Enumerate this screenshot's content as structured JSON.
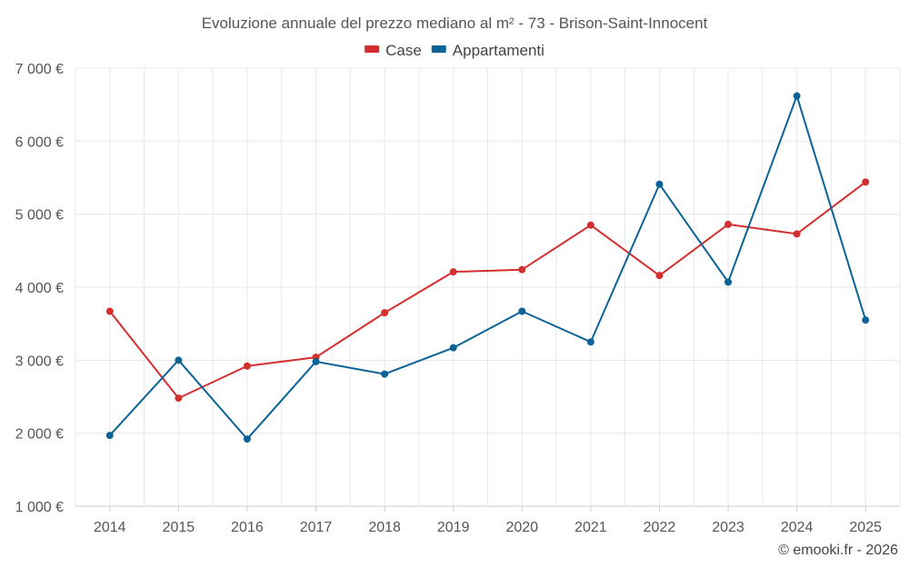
{
  "chart_data": {
    "type": "line",
    "title": "Evoluzione annuale del prezzo mediano al m² - 73 - Brison-Saint-Innocent",
    "categories": [
      "2014",
      "2015",
      "2016",
      "2017",
      "2018",
      "2019",
      "2020",
      "2021",
      "2022",
      "2023",
      "2024",
      "2025"
    ],
    "series": [
      {
        "name": "Case",
        "color": "#d32f2f",
        "values": [
          3670,
          2480,
          2920,
          3040,
          3650,
          4210,
          4240,
          4850,
          4160,
          4860,
          4730,
          5440
        ]
      },
      {
        "name": "Appartamenti",
        "color": "#0b6396",
        "values": [
          1970,
          3000,
          1920,
          2980,
          2810,
          3170,
          3670,
          3250,
          5410,
          4070,
          6620,
          3550
        ]
      }
    ],
    "ylim": [
      1000,
      7000
    ],
    "yticks": [
      1000,
      2000,
      3000,
      4000,
      5000,
      6000,
      7000
    ],
    "ytick_labels": [
      "1 000 €",
      "2 000 €",
      "3 000 €",
      "4 000 €",
      "5 000 €",
      "6 000 €",
      "7 000 €"
    ],
    "legend_position": "top-center",
    "grid": true
  },
  "credit": "© emooki.fr - 2026"
}
